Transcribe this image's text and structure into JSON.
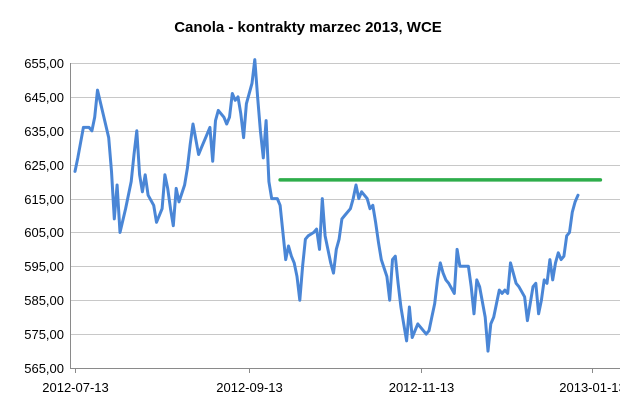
{
  "chart_data": {
    "type": "line",
    "title": "Canola - kontrakty marzec 2013, WCE",
    "xlabel": "",
    "ylabel": "",
    "ylim": [
      565,
      655
    ],
    "y_ticks": [
      "565,00",
      "575,00",
      "585,00",
      "595,00",
      "605,00",
      "615,00",
      "625,00",
      "635,00",
      "645,00",
      "655,00"
    ],
    "x_ticks": [
      "2012-07-13",
      "2012-09-13",
      "2012-11-13",
      "2013-01-13"
    ],
    "grid": "horizontal",
    "legend": "none",
    "series": [
      {
        "color": "#4A86D6",
        "points": [
          [
            "2012-07-13",
            623
          ],
          [
            "2012-07-14",
            627
          ],
          [
            "2012-07-16",
            636
          ],
          [
            "2012-07-18",
            636
          ],
          [
            "2012-07-19",
            635
          ],
          [
            "2012-07-20",
            639
          ],
          [
            "2012-07-21",
            647
          ],
          [
            "2012-07-23",
            640
          ],
          [
            "2012-07-25",
            633
          ],
          [
            "2012-07-26",
            623
          ],
          [
            "2012-07-27",
            609
          ],
          [
            "2012-07-28",
            619
          ],
          [
            "2012-07-29",
            605
          ],
          [
            "2012-07-31",
            612
          ],
          [
            "2012-08-02",
            620
          ],
          [
            "2012-08-03",
            628
          ],
          [
            "2012-08-04",
            635
          ],
          [
            "2012-08-05",
            622
          ],
          [
            "2012-08-06",
            617
          ],
          [
            "2012-08-07",
            622
          ],
          [
            "2012-08-08",
            616
          ],
          [
            "2012-08-10",
            613
          ],
          [
            "2012-08-11",
            608
          ],
          [
            "2012-08-13",
            612
          ],
          [
            "2012-08-14",
            622
          ],
          [
            "2012-08-15",
            618
          ],
          [
            "2012-08-16",
            612
          ],
          [
            "2012-08-17",
            607
          ],
          [
            "2012-08-18",
            618
          ],
          [
            "2012-08-19",
            614
          ],
          [
            "2012-08-21",
            619
          ],
          [
            "2012-08-22",
            624
          ],
          [
            "2012-08-23",
            631
          ],
          [
            "2012-08-24",
            637
          ],
          [
            "2012-08-26",
            628
          ],
          [
            "2012-08-27",
            630
          ],
          [
            "2012-08-29",
            634
          ],
          [
            "2012-08-30",
            636
          ],
          [
            "2012-08-31",
            626
          ],
          [
            "2012-09-01",
            638
          ],
          [
            "2012-09-02",
            641
          ],
          [
            "2012-09-04",
            639
          ],
          [
            "2012-09-05",
            637
          ],
          [
            "2012-09-06",
            639
          ],
          [
            "2012-09-07",
            646
          ],
          [
            "2012-09-08",
            644
          ],
          [
            "2012-09-09",
            645
          ],
          [
            "2012-09-10",
            640
          ],
          [
            "2012-09-11",
            633
          ],
          [
            "2012-09-12",
            643
          ],
          [
            "2012-09-14",
            649
          ],
          [
            "2012-09-15",
            656
          ],
          [
            "2012-09-16",
            645
          ],
          [
            "2012-09-17",
            635
          ],
          [
            "2012-09-18",
            627
          ],
          [
            "2012-09-19",
            638
          ],
          [
            "2012-09-20",
            620
          ],
          [
            "2012-09-21",
            615
          ],
          [
            "2012-09-23",
            615
          ],
          [
            "2012-09-24",
            613
          ],
          [
            "2012-09-25",
            605
          ],
          [
            "2012-09-26",
            597
          ],
          [
            "2012-09-27",
            601
          ],
          [
            "2012-09-28",
            598
          ],
          [
            "2012-09-29",
            596
          ],
          [
            "2012-09-30",
            592
          ],
          [
            "2012-10-01",
            585
          ],
          [
            "2012-10-02",
            595
          ],
          [
            "2012-10-03",
            603
          ],
          [
            "2012-10-04",
            604
          ],
          [
            "2012-10-06",
            605
          ],
          [
            "2012-10-07",
            606
          ],
          [
            "2012-10-08",
            600
          ],
          [
            "2012-10-09",
            615
          ],
          [
            "2012-10-10",
            604
          ],
          [
            "2012-10-12",
            596
          ],
          [
            "2012-10-13",
            593
          ],
          [
            "2012-10-14",
            600
          ],
          [
            "2012-10-15",
            603
          ],
          [
            "2012-10-16",
            609
          ],
          [
            "2012-10-17",
            610
          ],
          [
            "2012-10-19",
            612
          ],
          [
            "2012-10-20",
            615
          ],
          [
            "2012-10-21",
            619
          ],
          [
            "2012-10-22",
            615
          ],
          [
            "2012-10-23",
            617
          ],
          [
            "2012-10-25",
            615
          ],
          [
            "2012-10-26",
            612
          ],
          [
            "2012-10-27",
            613
          ],
          [
            "2012-10-28",
            608
          ],
          [
            "2012-10-29",
            602
          ],
          [
            "2012-10-30",
            597
          ],
          [
            "2012-11-01",
            592
          ],
          [
            "2012-11-02",
            585
          ],
          [
            "2012-11-03",
            597
          ],
          [
            "2012-11-04",
            598
          ],
          [
            "2012-11-05",
            590
          ],
          [
            "2012-11-06",
            583
          ],
          [
            "2012-11-07",
            578
          ],
          [
            "2012-11-08",
            573
          ],
          [
            "2012-11-09",
            583
          ],
          [
            "2012-11-10",
            574
          ],
          [
            "2012-11-11",
            576
          ],
          [
            "2012-11-12",
            578
          ],
          [
            "2012-11-13",
            577
          ],
          [
            "2012-11-15",
            575
          ],
          [
            "2012-11-16",
            576
          ],
          [
            "2012-11-17",
            580
          ],
          [
            "2012-11-18",
            584
          ],
          [
            "2012-11-19",
            591
          ],
          [
            "2012-11-20",
            596
          ],
          [
            "2012-11-21",
            593
          ],
          [
            "2012-11-22",
            591
          ],
          [
            "2012-11-23",
            590
          ],
          [
            "2012-11-25",
            587
          ],
          [
            "2012-11-26",
            600
          ],
          [
            "2012-11-27",
            595
          ],
          [
            "2012-11-29",
            595
          ],
          [
            "2012-11-30",
            595
          ],
          [
            "2012-12-01",
            589
          ],
          [
            "2012-12-02",
            581
          ],
          [
            "2012-12-03",
            591
          ],
          [
            "2012-12-04",
            589
          ],
          [
            "2012-12-06",
            580
          ],
          [
            "2012-12-07",
            570
          ],
          [
            "2012-12-08",
            578
          ],
          [
            "2012-12-09",
            580
          ],
          [
            "2012-12-10",
            584
          ],
          [
            "2012-12-11",
            588
          ],
          [
            "2012-12-12",
            587
          ],
          [
            "2012-12-13",
            588
          ],
          [
            "2012-12-14",
            587
          ],
          [
            "2012-12-15",
            596
          ],
          [
            "2012-12-16",
            593
          ],
          [
            "2012-12-17",
            590
          ],
          [
            "2012-12-18",
            589
          ],
          [
            "2012-12-20",
            586
          ],
          [
            "2012-12-21",
            579
          ],
          [
            "2012-12-22",
            584
          ],
          [
            "2012-12-23",
            589
          ],
          [
            "2012-12-24",
            590
          ],
          [
            "2012-12-25",
            581
          ],
          [
            "2012-12-26",
            585
          ],
          [
            "2012-12-27",
            591
          ],
          [
            "2012-12-28",
            590
          ],
          [
            "2012-12-29",
            597
          ],
          [
            "2012-12-30",
            591
          ],
          [
            "2012-12-31",
            596
          ],
          [
            "2013-01-01",
            599
          ],
          [
            "2013-01-02",
            597
          ],
          [
            "2013-01-03",
            598
          ],
          [
            "2013-01-04",
            604
          ],
          [
            "2013-01-05",
            605
          ],
          [
            "2013-01-06",
            611
          ],
          [
            "2013-01-07",
            614
          ],
          [
            "2013-01-08",
            616
          ]
        ]
      },
      {
        "color": "#2EAD4B",
        "points": [
          [
            "2012-09-24",
            620.5
          ],
          [
            "2013-01-16",
            620.5
          ]
        ]
      }
    ]
  }
}
